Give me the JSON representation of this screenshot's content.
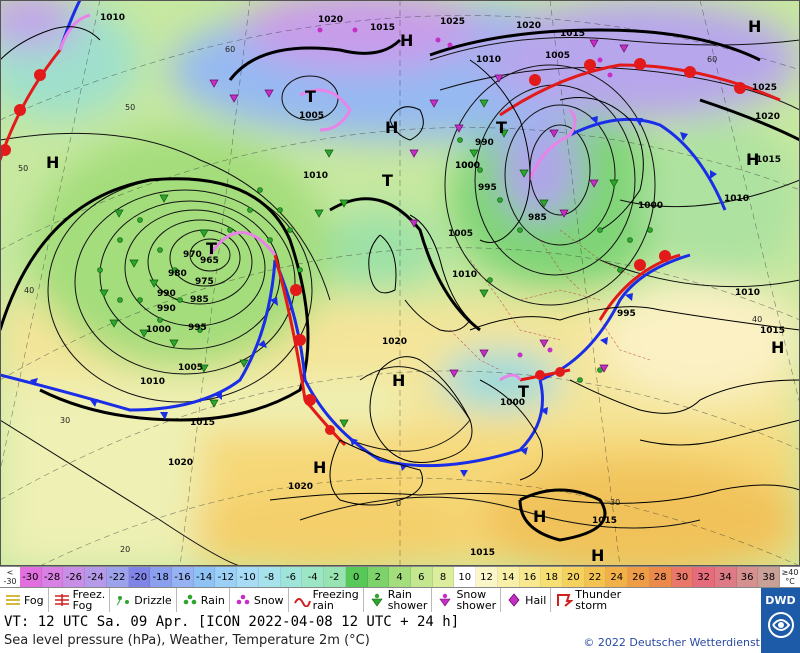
{
  "scale": {
    "unit_top": "≥40",
    "unit_bottom": "°C",
    "unit_left_top": "<",
    "unit_left_bottom": "-30",
    "cells": [
      {
        "label": "-30",
        "color": "#e16fe0"
      },
      {
        "label": "-28",
        "color": "#d980e4"
      },
      {
        "label": "-26",
        "color": "#c88fe6"
      },
      {
        "label": "-24",
        "color": "#b49ae8"
      },
      {
        "label": "-22",
        "color": "#9da3ea"
      },
      {
        "label": "-20",
        "color": "#7f84e6"
      },
      {
        "label": "-18",
        "color": "#8aa0ef"
      },
      {
        "label": "-16",
        "color": "#95b3f3"
      },
      {
        "label": "-14",
        "color": "#8fc2f5"
      },
      {
        "label": "-12",
        "color": "#9dd0f7"
      },
      {
        "label": "-10",
        "color": "#a8dcf6"
      },
      {
        "label": "-8",
        "color": "#a5e2ec"
      },
      {
        "label": "-6",
        "color": "#9fe4d8"
      },
      {
        "label": "-4",
        "color": "#9ce5c5"
      },
      {
        "label": "-2",
        "color": "#98e3b2"
      },
      {
        "label": "0",
        "color": "#58c858"
      },
      {
        "label": "2",
        "color": "#7dd36a"
      },
      {
        "label": "4",
        "color": "#a4dd7c"
      },
      {
        "label": "6",
        "color": "#c3e68e"
      },
      {
        "label": "8",
        "color": "#dcee9e"
      },
      {
        "label": "10",
        "color": "#ffffff"
      },
      {
        "label": "12",
        "color": "#fbf6c8"
      },
      {
        "label": "14",
        "color": "#f9f0a8"
      },
      {
        "label": "16",
        "color": "#f8e88e"
      },
      {
        "label": "18",
        "color": "#f7df74"
      },
      {
        "label": "20",
        "color": "#f5d15e"
      },
      {
        "label": "22",
        "color": "#f3c250"
      },
      {
        "label": "24",
        "color": "#f1b148"
      },
      {
        "label": "26",
        "color": "#ee9d46"
      },
      {
        "label": "28",
        "color": "#ec8a4c"
      },
      {
        "label": "30",
        "color": "#e9786a"
      },
      {
        "label": "32",
        "color": "#e66c7c"
      },
      {
        "label": "34",
        "color": "#dd7a86"
      },
      {
        "label": "36",
        "color": "#d59090"
      },
      {
        "label": "38",
        "color": "#c8a098"
      }
    ]
  },
  "legend": [
    {
      "label": "Fog",
      "symbol": "fog-icon"
    },
    {
      "label": "Freez.\nFog",
      "symbol": "freezing-fog-icon"
    },
    {
      "label": "Drizzle",
      "symbol": "drizzle-icon"
    },
    {
      "label": "Rain",
      "symbol": "rain-icon"
    },
    {
      "label": "Snow",
      "symbol": "snow-icon"
    },
    {
      "label": "Freezing\nrain",
      "symbol": "freezing-rain-icon"
    },
    {
      "label": "Rain\nshower",
      "symbol": "rain-shower-icon"
    },
    {
      "label": "Snow\nshower",
      "symbol": "snow-shower-icon"
    },
    {
      "label": "Hail",
      "symbol": "hail-icon"
    },
    {
      "label": "Thunder\nstorm",
      "symbol": "thunderstorm-icon"
    }
  ],
  "info": {
    "valid_time": "VT: 12 UTC Sa.  09 Apr. [ICON 2022-04-08  12 UTC + 24 h]",
    "subtitle": "Sea level pressure (hPa), Weather, Temperature 2m (°C)",
    "copyright": "© 2022 Deutscher Wetterdienst",
    "logo": "DWD"
  },
  "map": {
    "isobar_labels": [
      "1010",
      "1020",
      "1015",
      "1025",
      "1015",
      "1020",
      "1010",
      "1005",
      "1000",
      "995",
      "990",
      "985",
      "980",
      "975",
      "970",
      "965",
      "1010",
      "1005",
      "1000",
      "995",
      "990",
      "985",
      "1010",
      "1005",
      "1000",
      "1015",
      "1020",
      "1025",
      "1015",
      "1020",
      "1010",
      "1005",
      "1000",
      "995",
      "990",
      "1015",
      "1020",
      "1010",
      "1010",
      "1015",
      "1015",
      "1020",
      "1000"
    ],
    "pressure_centers": [
      {
        "type": "H",
        "label": "H"
      },
      {
        "type": "H",
        "label": "H"
      },
      {
        "type": "H",
        "label": "H"
      },
      {
        "type": "T",
        "label": "T"
      },
      {
        "type": "T",
        "label": "T"
      },
      {
        "type": "T",
        "label": "T"
      },
      {
        "type": "H",
        "label": "H"
      },
      {
        "type": "H",
        "label": "H"
      },
      {
        "type": "T",
        "label": "T"
      },
      {
        "type": "H",
        "label": "H"
      },
      {
        "type": "H",
        "label": "H"
      },
      {
        "type": "H",
        "label": "H"
      },
      {
        "type": "T",
        "label": "T"
      },
      {
        "type": "H",
        "label": "H"
      },
      {
        "type": "H",
        "label": "H"
      }
    ],
    "graticule_labels": [
      "60",
      "50",
      "40",
      "30",
      "20",
      "0",
      "60",
      "50",
      "40",
      "30"
    ]
  }
}
